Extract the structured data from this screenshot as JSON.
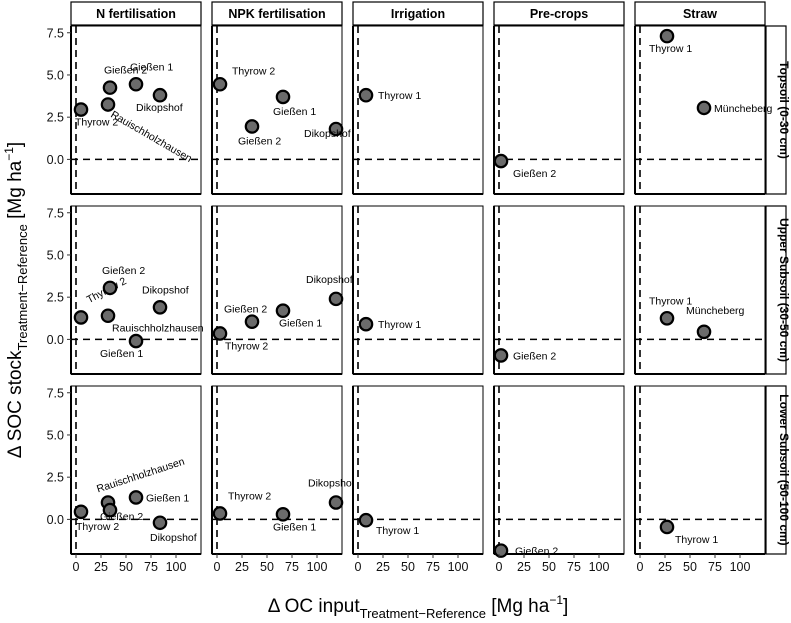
{
  "chart_data": {
    "type": "scatter",
    "xlabel": {
      "prefix": "Δ OC input",
      "subscript": "Treatment−Reference",
      "unit": " [Mg ha",
      "unit_sup": "−1",
      "unit_end": "]"
    },
    "ylabel": {
      "prefix": "Δ SOC stock",
      "subscript": "Treatment−Reference",
      "unit": " [Mg ha",
      "unit_sup": "−1",
      "unit_end": "]"
    },
    "xlim": [
      -5,
      125
    ],
    "ylim": [
      -2.05,
      7.9
    ],
    "x_ticks": [
      0,
      25,
      50,
      75,
      100
    ],
    "x_tick_labels": [
      "0",
      "25",
      "50",
      "75",
      "100"
    ],
    "y_ticks": [
      0.0,
      2.5,
      5.0,
      7.5
    ],
    "y_tick_labels": [
      "0.0",
      "2.5",
      "5.0",
      "7.5"
    ],
    "columns": [
      "N fertilisation",
      "NPK fertilisation",
      "Irrigation",
      "Pre-crops",
      "Straw"
    ],
    "rows": [
      "Topsoil (0-30 cm)",
      "Upper Subsoil (30-50 cm)",
      "Lower Subsoil (50-100 cm)"
    ],
    "reference_lines": {
      "x": 0,
      "y": 0
    },
    "point_color": "#6b6b6b",
    "panels": [
      {
        "row": 0,
        "col": 0,
        "points": [
          {
            "label": "Thyrow 2",
            "x": 5,
            "y": 2.95
          },
          {
            "label": "Rauischholzhausen",
            "x": 32,
            "y": 3.25
          },
          {
            "label": "Gießen 2",
            "x": 34,
            "y": 4.25
          },
          {
            "label": "Gießen 1",
            "x": 60,
            "y": 4.45
          },
          {
            "label": "Dikopshof",
            "x": 84,
            "y": 3.8
          }
        ]
      },
      {
        "row": 0,
        "col": 1,
        "points": [
          {
            "label": "Thyrow 2",
            "x": 3,
            "y": 4.45
          },
          {
            "label": "Gießen 2",
            "x": 35,
            "y": 1.95
          },
          {
            "label": "Gießen 1",
            "x": 66,
            "y": 3.7
          },
          {
            "label": "Dikopshof",
            "x": 119,
            "y": 1.8
          }
        ]
      },
      {
        "row": 0,
        "col": 2,
        "points": [
          {
            "label": "Thyrow 1",
            "x": 8,
            "y": 3.8
          }
        ]
      },
      {
        "row": 0,
        "col": 3,
        "points": [
          {
            "label": "Gießen 2",
            "x": 2,
            "y": -0.1
          }
        ]
      },
      {
        "row": 0,
        "col": 4,
        "points": [
          {
            "label": "Thyrow 1",
            "x": 27,
            "y": 7.3
          },
          {
            "label": "Müncheberg",
            "x": 64,
            "y": 3.05
          }
        ]
      },
      {
        "row": 1,
        "col": 0,
        "points": [
          {
            "label": "Thyrow 2",
            "x": 5,
            "y": 1.3
          },
          {
            "label": "Gießen 2",
            "x": 34,
            "y": 3.05
          },
          {
            "label": "Rauischholzhausen",
            "x": 32,
            "y": 1.4
          },
          {
            "label": "Dikopshof",
            "x": 84,
            "y": 1.9
          },
          {
            "label": "Gießen 1",
            "x": 60,
            "y": -0.1
          }
        ]
      },
      {
        "row": 1,
        "col": 1,
        "points": [
          {
            "label": "Thyrow 2",
            "x": 3,
            "y": 0.35
          },
          {
            "label": "Gießen 2",
            "x": 35,
            "y": 1.05
          },
          {
            "label": "Gießen 1",
            "x": 66,
            "y": 1.7
          },
          {
            "label": "Dikopshof",
            "x": 119,
            "y": 2.4
          }
        ]
      },
      {
        "row": 1,
        "col": 2,
        "points": [
          {
            "label": "Thyrow 1",
            "x": 8,
            "y": 0.9
          }
        ]
      },
      {
        "row": 1,
        "col": 3,
        "points": [
          {
            "label": "Gießen 2",
            "x": 2,
            "y": -0.95
          }
        ]
      },
      {
        "row": 1,
        "col": 4,
        "points": [
          {
            "label": "Thyrow 1",
            "x": 27,
            "y": 1.25
          },
          {
            "label": "Müncheberg",
            "x": 64,
            "y": 0.45
          }
        ]
      },
      {
        "row": 2,
        "col": 0,
        "points": [
          {
            "label": "Thyrow 2",
            "x": 5,
            "y": 0.45
          },
          {
            "label": "Rauischholzhausen",
            "x": 32,
            "y": 1.0
          },
          {
            "label": "Gießen 2",
            "x": 34,
            "y": 0.55
          },
          {
            "label": "Gießen 1",
            "x": 60,
            "y": 1.3
          },
          {
            "label": "Dikopshof",
            "x": 84,
            "y": -0.2
          }
        ]
      },
      {
        "row": 2,
        "col": 1,
        "points": [
          {
            "label": "Thyrow 2",
            "x": 3,
            "y": 0.35
          },
          {
            "label": "Gießen 1",
            "x": 66,
            "y": 0.3
          },
          {
            "label": "Dikopshof",
            "x": 119,
            "y": 1.0
          }
        ]
      },
      {
        "row": 2,
        "col": 2,
        "points": [
          {
            "label": "Thyrow 1",
            "x": 8,
            "y": -0.05
          }
        ]
      },
      {
        "row": 2,
        "col": 3,
        "points": [
          {
            "label": "Gießen 2",
            "x": 2,
            "y": -1.85
          }
        ]
      },
      {
        "row": 2,
        "col": 4,
        "points": [
          {
            "label": "Thyrow 1",
            "x": 27,
            "y": -0.45
          }
        ]
      }
    ]
  }
}
